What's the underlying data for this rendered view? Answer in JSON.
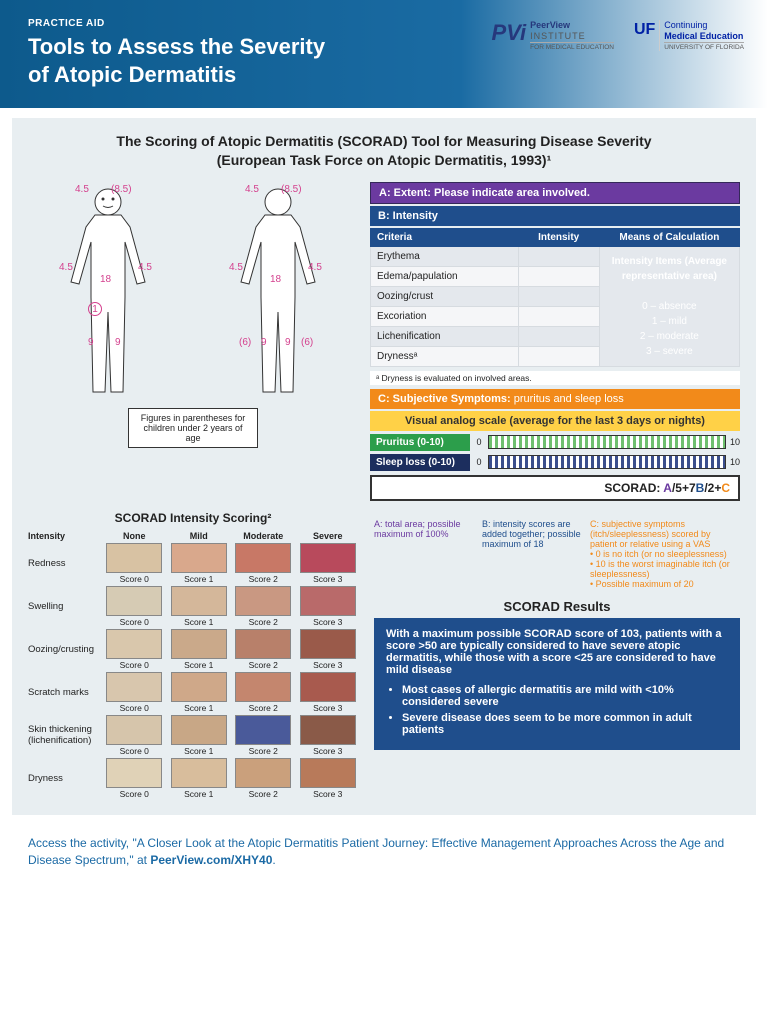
{
  "header": {
    "eyebrow": "PRACTICE AID",
    "title": "Tools to Assess the Severity\nof Atopic Dermatitis",
    "logo_pvi_mark": "PVi",
    "logo_pvi_top": "PeerView",
    "logo_pvi_mid": "INSTITUTE",
    "logo_pvi_bot": "FOR MEDICAL EDUCATION",
    "logo_uf_mark": "UF",
    "logo_uf_top": "Continuing",
    "logo_uf_mid": "Medical Education",
    "logo_uf_bot": "UNIVERSITY OF FLORIDA"
  },
  "main_title": "The Scoring of Atopic Dermatitis (SCORAD) Tool for Measuring Disease Severity\n(European Task Force on Atopic Dermatitis, 1993)¹",
  "body_labels": {
    "front_head": "4.5",
    "front_head_paren": "(8.5)",
    "arm_l": "4.5",
    "arm_r": "4.5",
    "trunk": "18",
    "genital": "1",
    "leg_l": "9",
    "leg_r": "9",
    "back_head": "4.5",
    "back_head_paren": "(8.5)",
    "back_arm_l": "4.5",
    "back_arm_r": "4.5",
    "back_trunk": "18",
    "back_leg_par_l": "(6)",
    "back_leg_l": "9",
    "back_leg_r": "9",
    "back_leg_par_r": "(6)",
    "note": "Figures in parentheses for children under 2 years of age"
  },
  "sectionA": "A: Extent: Please indicate area involved.",
  "sectionB": "B: Intensity",
  "criteria": {
    "headers": [
      "Criteria",
      "Intensity",
      "Means of Calculation"
    ],
    "rows": [
      "Erythema",
      "Edema/papulation",
      "Oozing/crust",
      "Excoriation",
      "Lichenification",
      "Drynessᵃ"
    ],
    "merged_title": "Intensity Items (Average representative area)",
    "merged_scale": [
      "0 – absence",
      "1 – mild",
      "2 – moderate",
      "3 – severe"
    ],
    "footnote": "ᵃ Dryness is evaluated on involved areas."
  },
  "sectionC": "C: Subjective Symptoms: ",
  "sectionC_sub": "pruritus and sleep loss",
  "vas_title": "Visual analog scale (average for the last 3 days or nights)",
  "vas": {
    "pruritus_label": "Pruritus (0-10)",
    "sleep_label": "Sleep loss (0-10)",
    "min": "0",
    "max": "10",
    "pruritus_color": "#6fbf6f",
    "sleep_color": "#3b4e8c"
  },
  "formula": {
    "prefix": "SCORAD:  ",
    "text_a": "A",
    "text_mid1": "/5+7",
    "text_b": "B",
    "text_mid2": "/2+",
    "text_c": "C"
  },
  "explain": {
    "a": "A: total area; possible maximum of 100%",
    "b": "B: intensity scores are added together; possible maximum of 18",
    "c_head": "C: subjective symptoms (itch/sleeplessness) scored by patient or relative using a VAS",
    "c1": "• 0 is no itch (or no sleeplessness)",
    "c2": "• 10 is the worst imaginable itch (or sleeplessness)",
    "c3": "• Possible maximum of 20"
  },
  "results": {
    "title": "SCORAD Results",
    "intro": "With a maximum possible SCORAD score of 103, patients with a score >50 are typically considered to have severe atopic dermatitis, while those with a score <25 are considered to have mild disease",
    "b1": "Most cases of allergic dermatitis are mild with <10% considered severe",
    "b2": "Severe disease does seem to be more common in adult patients"
  },
  "intensity_scoring": {
    "title": "SCORAD Intensity Scoring²",
    "col_headers": [
      "Intensity",
      "None",
      "Mild",
      "Moderate",
      "Severe"
    ],
    "rows": [
      "Redness",
      "Swelling",
      "Oozing/crusting",
      "Scratch marks",
      "Skin thickening (lichenification)",
      "Dryness"
    ],
    "score_labels": [
      "Score 0",
      "Score 1",
      "Score 2",
      "Score 3"
    ],
    "colors": [
      [
        "#d8c2a3",
        "#d9a88c",
        "#c87866",
        "#b84a5c"
      ],
      [
        "#d6cbb4",
        "#d4b79a",
        "#c99882",
        "#b96a6a"
      ],
      [
        "#d9c7ac",
        "#caa98a",
        "#b8806a",
        "#9a5a4a"
      ],
      [
        "#d8c6ad",
        "#cfa889",
        "#c4866e",
        "#a85a4e"
      ],
      [
        "#d6c5ab",
        "#c8a786",
        "#4a5a9a",
        "#8a5a48"
      ],
      [
        "#e0d2b7",
        "#d8bd9c",
        "#caa07c",
        "#b87a5a"
      ]
    ]
  },
  "footer": {
    "text_a": "Access the activity, \"A Closer Look at the Atopic Dermatitis Patient Journey: Effective Management Approaches Across the Age and Disease Spectrum,\" at ",
    "link": "PeerView.com/XHY40",
    "text_b": "."
  },
  "colors": {
    "header_gradient_from": "#0d5a8c",
    "header_gradient_to": "#1a6ba3",
    "main_bg": "#e8eef1",
    "purple": "#6b3aa0",
    "blue": "#1f4e8c",
    "orange": "#f28a1a",
    "yellow": "#ffd147",
    "green": "#2c9e4b",
    "navy": "#1c2e5e"
  }
}
